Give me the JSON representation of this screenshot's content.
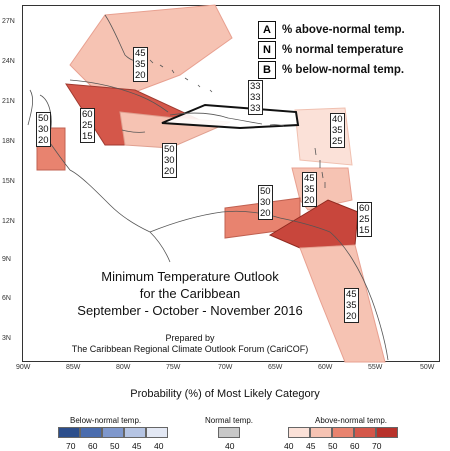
{
  "map": {
    "lat_labels": [
      "27N",
      "24N",
      "21N",
      "18N",
      "15N",
      "12N",
      "9N",
      "6N",
      "3N"
    ],
    "lon_labels": [
      "90W",
      "85W",
      "80W",
      "75W",
      "70W",
      "65W",
      "60W",
      "55W",
      "50W"
    ]
  },
  "key": {
    "items": [
      {
        "letter": "A",
        "text": "% above-normal temp."
      },
      {
        "letter": "N",
        "text": "% normal temperature"
      },
      {
        "letter": "B",
        "text": "% below-normal temp."
      }
    ]
  },
  "regions": [
    {
      "id": "bahamas",
      "values": [
        "45",
        "35",
        "20"
      ],
      "color": "#f6c3b3"
    },
    {
      "id": "cuba",
      "values": [
        "60",
        "25",
        "15"
      ],
      "color": "#d4574a"
    },
    {
      "id": "hispaniola",
      "values": [
        "33",
        "33",
        "33"
      ],
      "color": "#ffffff"
    },
    {
      "id": "central-america",
      "values": [
        "50",
        "30",
        "20"
      ],
      "color": "#e8836f"
    },
    {
      "id": "jamaica",
      "values": [
        "50",
        "30",
        "20"
      ],
      "color": "#f6c3b3"
    },
    {
      "id": "leeward",
      "values": [
        "40",
        "35",
        "25"
      ],
      "color": "#fbe1d8"
    },
    {
      "id": "windward",
      "values": [
        "45",
        "35",
        "20"
      ],
      "color": "#f6c3b3"
    },
    {
      "id": "abc",
      "values": [
        "50",
        "30",
        "20"
      ],
      "color": "#e8836f"
    },
    {
      "id": "trinidad",
      "values": [
        "60",
        "25",
        "15"
      ],
      "color": "#c8463c"
    },
    {
      "id": "guianas",
      "values": [
        "45",
        "35",
        "20"
      ],
      "color": "#f6c3b3"
    }
  ],
  "title": {
    "line1": "Minimum Temperature Outlook",
    "line2": "for the Caribbean",
    "line3": "September - October - November 2016"
  },
  "prepared": {
    "line1": "Prepared by",
    "line2": "The Caribbean Regional Climate Outlook Forum (CariCOF)"
  },
  "legend": {
    "title": "Probability (%) of Most Likely Category",
    "below_label": "Below-normal temp.",
    "normal_label": "Normal temp.",
    "above_label": "Above-normal temp.",
    "below_ticks": [
      "70",
      "60",
      "50",
      "45",
      "40"
    ],
    "normal_ticks": [
      "40"
    ],
    "above_ticks": [
      "40",
      "45",
      "50",
      "60",
      "70"
    ],
    "below_colors": [
      "#2c4e8c",
      "#4a6cae",
      "#7e97cc",
      "#b5c4e3",
      "#e3e8f4"
    ],
    "normal_color": "#c8c8c8",
    "above_colors": [
      "#fbe1d8",
      "#f6c3b3",
      "#e8836f",
      "#d4574a",
      "#b8322b"
    ]
  }
}
